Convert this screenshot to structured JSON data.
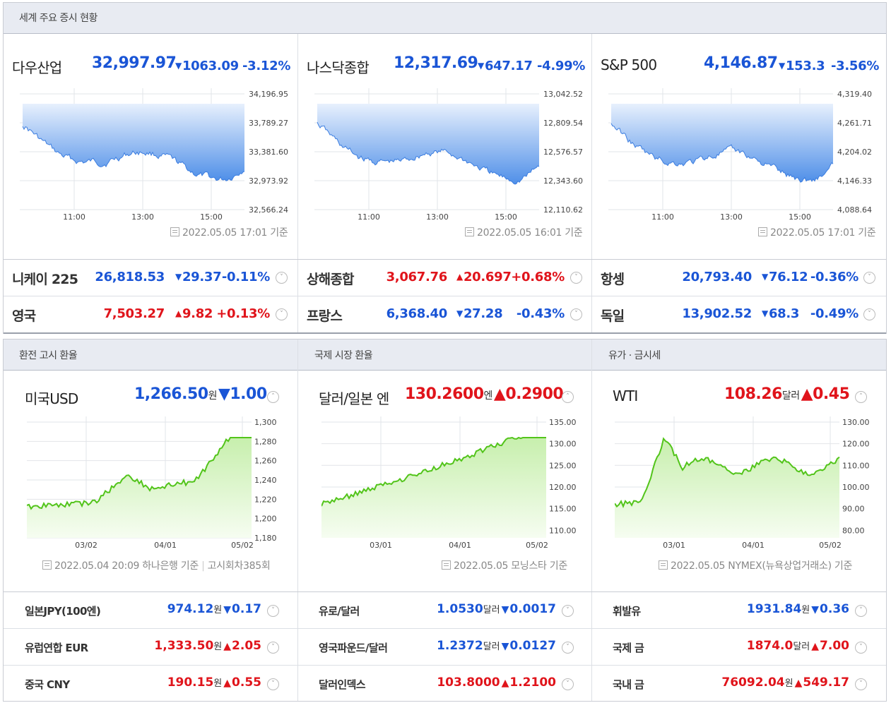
{
  "top": {
    "title": "세계 주요 증시 현황",
    "indices": [
      {
        "name": "다우산업",
        "value": "32,997.97",
        "change": "1063.09",
        "pct": "-3.12%",
        "dir": "down",
        "yticks": [
          "34,196.95",
          "33,789.27",
          "33,381.60",
          "32,973.92",
          "32,566.24"
        ],
        "xticks": [
          "11:00",
          "13:00",
          "15:00"
        ],
        "stamp": "2022.05.05 17:01 기준"
      },
      {
        "name": "나스닥종합",
        "value": "12,317.69",
        "change": "647.17",
        "pct": "-4.99%",
        "dir": "down",
        "yticks": [
          "13,042.52",
          "12,809.54",
          "12,576.57",
          "12,343.60",
          "12,110.62"
        ],
        "xticks": [
          "11:00",
          "13:00",
          "15:00"
        ],
        "stamp": "2022.05.05 16:01 기준"
      },
      {
        "name": "S&P 500",
        "value": "4,146.87",
        "change": "153.3",
        "pct": "-3.56%",
        "dir": "down",
        "yticks": [
          "4,319.40",
          "4,261.71",
          "4,204.02",
          "4,146.33",
          "4,088.64"
        ],
        "xticks": [
          "11:00",
          "13:00",
          "15:00"
        ],
        "stamp": "2022.05.05 17:01 기준"
      }
    ],
    "rows": [
      [
        {
          "name": "니케이 225",
          "value": "26,818.53",
          "change": "29.37",
          "pct": "-0.11%",
          "dir": "down"
        },
        {
          "name": "상해종합",
          "value": "3,067.76",
          "change": "20.697",
          "pct": "+0.68%",
          "dir": "up"
        },
        {
          "name": "항셍",
          "value": "20,793.40",
          "change": "76.12",
          "pct": "-0.36%",
          "dir": "down"
        }
      ],
      [
        {
          "name": "영국",
          "value": "7,503.27",
          "change": "9.82",
          "pct": "+0.13%",
          "dir": "up"
        },
        {
          "name": "프랑스",
          "value": "6,368.40",
          "change": "27.28",
          "pct": "-0.43%",
          "dir": "down"
        },
        {
          "name": "독일",
          "value": "13,902.52",
          "change": "68.3",
          "pct": "-0.49%",
          "dir": "down"
        }
      ]
    ]
  },
  "fx": {
    "panels": [
      {
        "title": "환전 고시 환율",
        "name": "미국USD",
        "value": "1,266.50",
        "unit": "원",
        "change": "1.00",
        "dir": "down",
        "yticks": [
          "1,300",
          "1,280",
          "1,260",
          "1,240",
          "1,220",
          "1,200",
          "1,180"
        ],
        "xticks": [
          "03/02",
          "04/01",
          "05/02"
        ],
        "stamp": "2022.05.04 20:09 하나은행 기준",
        "stamp2": "고시회차385회"
      },
      {
        "title": "국제 시장 환율",
        "name": "달러/일본 엔",
        "value": "130.2600",
        "unit": "엔",
        "change": "0.2900",
        "dir": "up",
        "yticks": [
          "135.00",
          "130.00",
          "125.00",
          "120.00",
          "115.00",
          "110.00"
        ],
        "xticks": [
          "03/01",
          "04/01",
          "05/02"
        ],
        "stamp": "2022.05.05 모닝스타 기준"
      },
      {
        "title": "유가 · 금시세",
        "name": "WTI",
        "value": "108.26",
        "unit": "달러",
        "change": "0.45",
        "dir": "up",
        "yticks": [
          "130.00",
          "120.00",
          "110.00",
          "100.00",
          "90.00",
          "80.00"
        ],
        "xticks": [
          "03/01",
          "04/01",
          "05/02"
        ],
        "stamp": "2022.05.05 NYMEX(뉴욕상업거래소) 기준"
      }
    ],
    "rows": [
      [
        {
          "name": "일본JPY(100엔)",
          "value": "974.12",
          "unit": "원",
          "change": "0.17",
          "dir": "down"
        },
        {
          "name": "유로/달러",
          "value": "1.0530",
          "unit": "달러",
          "change": "0.0017",
          "dir": "down"
        },
        {
          "name": "휘발유",
          "value": "1931.84",
          "unit": "원",
          "change": "0.36",
          "dir": "down"
        }
      ],
      [
        {
          "name": "유럽연합 EUR",
          "value": "1,333.50",
          "unit": "원",
          "change": "2.05",
          "dir": "up"
        },
        {
          "name": "영국파운드/달러",
          "value": "1.2372",
          "unit": "달러",
          "change": "0.0127",
          "dir": "down"
        },
        {
          "name": "국제 금",
          "value": "1874.0",
          "unit": "달러",
          "change": "7.00",
          "dir": "up"
        }
      ],
      [
        {
          "name": "중국 CNY",
          "value": "190.15",
          "unit": "원",
          "change": "0.55",
          "dir": "up"
        },
        {
          "name": "달러인덱스",
          "value": "103.8000",
          "unit": "",
          "change": "1.2100",
          "dir": "up"
        },
        {
          "name": "국내 금",
          "value": "76092.04",
          "unit": "원",
          "change": "549.17",
          "dir": "up"
        }
      ]
    ]
  },
  "glyphs": {
    "down": "▼",
    "up": "▲",
    "collapse": "˅",
    "expand": "˄"
  },
  "colors": {
    "down": "#1a55d6",
    "up": "#e0141b",
    "index_fill": "#4f8fe8",
    "fx_line": "#52c41a"
  }
}
